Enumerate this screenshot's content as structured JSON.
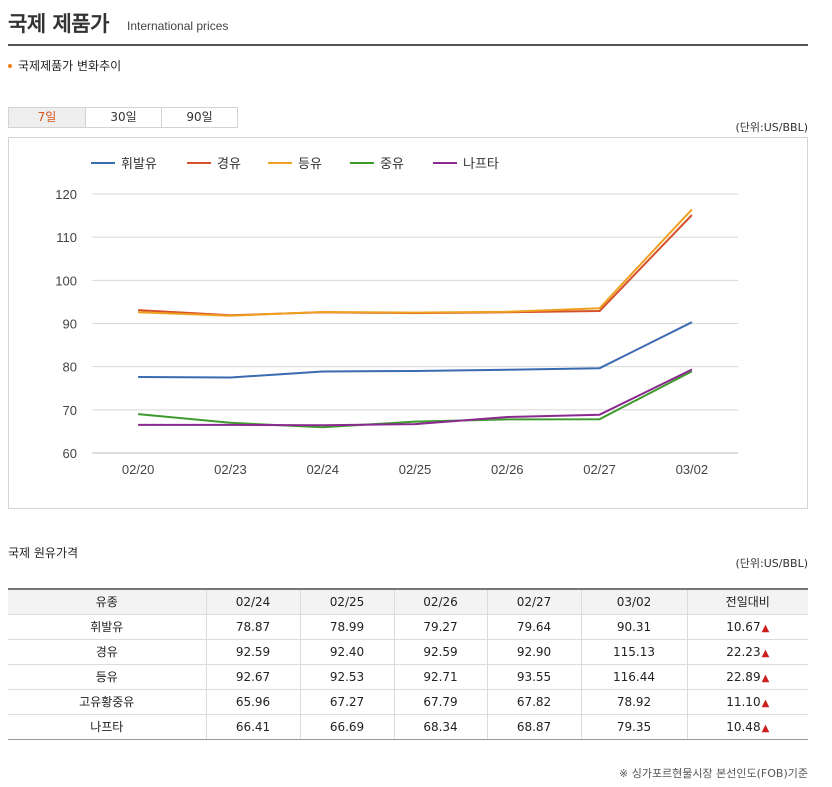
{
  "header": {
    "title": "국제 제품가",
    "subtitle": "International prices"
  },
  "section_label": "국제제품가 변화추이",
  "tabs": [
    {
      "label": "7일",
      "active": true
    },
    {
      "label": "30일",
      "active": false
    },
    {
      "label": "90일",
      "active": false
    }
  ],
  "chart_unit": "(단위:US/BBL)",
  "chart_data": {
    "type": "line",
    "categories": [
      "02/20",
      "02/23",
      "02/24",
      "02/25",
      "02/26",
      "02/27",
      "03/02"
    ],
    "ylim": [
      60,
      120
    ],
    "yticks": [
      60,
      70,
      80,
      90,
      100,
      110,
      120
    ],
    "grid": true,
    "legend": "top-left",
    "series": [
      {
        "name": "휘발유",
        "color": "#3a6bb0",
        "values": [
          77.6,
          77.5,
          78.87,
          78.99,
          79.27,
          79.64,
          90.31
        ]
      },
      {
        "name": "경유",
        "color": "#d4512a",
        "values": [
          93.1,
          91.9,
          92.59,
          92.4,
          92.59,
          92.9,
          115.13
        ]
      },
      {
        "name": "등유",
        "color": "#f0a020",
        "values": [
          92.6,
          91.8,
          92.67,
          92.53,
          92.71,
          93.55,
          116.44
        ]
      },
      {
        "name": "중유",
        "color": "#3f9a2e",
        "values": [
          69.0,
          67.0,
          65.96,
          67.27,
          67.79,
          67.82,
          78.92
        ]
      },
      {
        "name": "나프타",
        "color": "#8a2a8f",
        "values": [
          66.5,
          66.5,
          66.41,
          66.69,
          68.34,
          68.87,
          79.35
        ]
      }
    ]
  },
  "table": {
    "title": "국제 원유가격",
    "unit": "(단위:US/BBL)",
    "headers": [
      "유종",
      "02/24",
      "02/25",
      "02/26",
      "02/27",
      "03/02",
      "전일대비"
    ],
    "rows": [
      {
        "name": "휘발유",
        "values": [
          "78.87",
          "78.99",
          "79.27",
          "79.64",
          "90.31"
        ],
        "change": "10.67",
        "arrow": "▲"
      },
      {
        "name": "경유",
        "values": [
          "92.59",
          "92.40",
          "92.59",
          "92.90",
          "115.13"
        ],
        "change": "22.23",
        "arrow": "▲"
      },
      {
        "name": "등유",
        "values": [
          "92.67",
          "92.53",
          "92.71",
          "93.55",
          "116.44"
        ],
        "change": "22.89",
        "arrow": "▲"
      },
      {
        "name": "고유황중유",
        "values": [
          "65.96",
          "67.27",
          "67.79",
          "67.82",
          "78.92"
        ],
        "change": "11.10",
        "arrow": "▲"
      },
      {
        "name": "나프타",
        "values": [
          "66.41",
          "66.69",
          "68.34",
          "68.87",
          "79.35"
        ],
        "change": "10.48",
        "arrow": "▲"
      }
    ]
  },
  "footnote": "※ 싱가포르현물시장 본선인도(FOB)기준"
}
